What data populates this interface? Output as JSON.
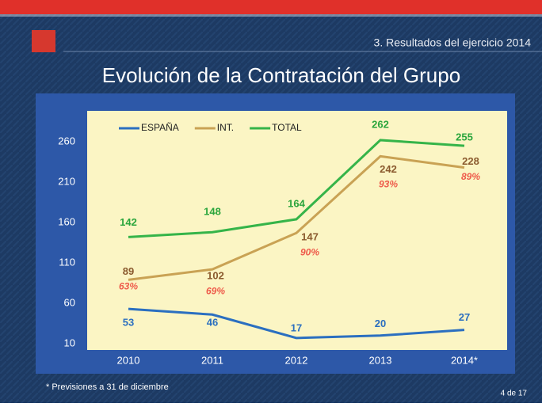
{
  "header": "3. Resultados del ejercicio 2014",
  "chart_data": {
    "type": "line",
    "title": "Evolución de la Contratación del Grupo",
    "categories": [
      "2010",
      "2011",
      "2012",
      "2013",
      "2014*"
    ],
    "series": [
      {
        "name": "ESPAÑA",
        "color": "#2b6fc0",
        "label_color": "#2b6fc0",
        "values": [
          53,
          46,
          17,
          20,
          27
        ]
      },
      {
        "name": "INT.",
        "color": "#c9a254",
        "label_color": "#8a5a2e",
        "values": [
          89,
          102,
          147,
          242,
          228
        ]
      },
      {
        "name": "TOTAL",
        "color": "#35b449",
        "label_color": "#2aa53c",
        "values": [
          142,
          148,
          164,
          262,
          255
        ]
      }
    ],
    "int_share_labels": [
      "63%",
      "69%",
      "90%",
      "93%",
      "89%"
    ],
    "ylim": [
      10,
      260
    ],
    "yticks": [
      10,
      60,
      110,
      160,
      210,
      260
    ],
    "grid": false,
    "legend": "top"
  },
  "footnote": "* Previsiones a 31 de diciembre",
  "page": "4 de 17"
}
